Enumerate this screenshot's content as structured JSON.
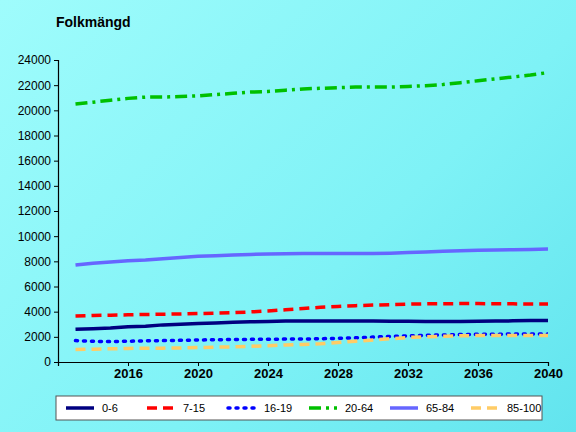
{
  "chart_data": {
    "type": "line",
    "title": "Folkmängd",
    "x": [
      2013,
      2014,
      2015,
      2016,
      2017,
      2018,
      2019,
      2020,
      2021,
      2022,
      2023,
      2024,
      2025,
      2026,
      2027,
      2028,
      2029,
      2030,
      2031,
      2032,
      2033,
      2034,
      2035,
      2036,
      2037,
      2038,
      2039,
      2040
    ],
    "xlim": [
      2012,
      2040
    ],
    "xticks": [
      2016,
      2020,
      2024,
      2028,
      2032,
      2036,
      2040
    ],
    "ylim": [
      0,
      24000
    ],
    "yticks": [
      0,
      2000,
      4000,
      6000,
      8000,
      10000,
      12000,
      14000,
      16000,
      18000,
      20000,
      22000,
      24000
    ],
    "grid": false,
    "legend": "bottom",
    "series": [
      {
        "name": "0-6",
        "color": "#000080",
        "line_style": "solid",
        "values": [
          2600,
          2650,
          2700,
          2800,
          2850,
          2950,
          3000,
          3050,
          3100,
          3150,
          3200,
          3220,
          3250,
          3250,
          3250,
          3250,
          3250,
          3250,
          3240,
          3230,
          3220,
          3220,
          3220,
          3230,
          3250,
          3270,
          3290,
          3300
        ]
      },
      {
        "name": "7-15",
        "color": "#ff0000",
        "line_style": "dashed",
        "values": [
          3650,
          3700,
          3720,
          3750,
          3780,
          3800,
          3820,
          3850,
          3880,
          3920,
          3980,
          4050,
          4150,
          4250,
          4350,
          4420,
          4480,
          4520,
          4560,
          4600,
          4620,
          4630,
          4640,
          4640,
          4630,
          4620,
          4610,
          4600
        ]
      },
      {
        "name": "16-19",
        "color": "#0000ff",
        "line_style": "dotted",
        "values": [
          1700,
          1650,
          1620,
          1650,
          1680,
          1700,
          1720,
          1750,
          1770,
          1790,
          1800,
          1810,
          1820,
          1830,
          1850,
          1880,
          1920,
          1980,
          2030,
          2080,
          2120,
          2150,
          2180,
          2200,
          2210,
          2220,
          2220,
          2220
        ]
      },
      {
        "name": "20-64",
        "color": "#00c000",
        "line_style": "dashdot",
        "values": [
          20500,
          20650,
          20800,
          20950,
          21050,
          21050,
          21100,
          21150,
          21250,
          21350,
          21450,
          21500,
          21600,
          21700,
          21750,
          21800,
          21850,
          21850,
          21850,
          21900,
          21950,
          22050,
          22200,
          22350,
          22500,
          22650,
          22800,
          23000
        ]
      },
      {
        "name": "65-84",
        "color": "#6666ff",
        "line_style": "solid",
        "values": [
          7700,
          7850,
          7950,
          8050,
          8100,
          8200,
          8300,
          8400,
          8450,
          8500,
          8550,
          8580,
          8600,
          8620,
          8620,
          8620,
          8620,
          8630,
          8650,
          8700,
          8750,
          8800,
          8850,
          8880,
          8900,
          8920,
          8950,
          8980
        ]
      },
      {
        "name": "85-100",
        "color": "#ffcc66",
        "line_style": "dashed",
        "values": [
          1000,
          1020,
          1050,
          1080,
          1100,
          1100,
          1120,
          1150,
          1180,
          1200,
          1250,
          1300,
          1350,
          1400,
          1450,
          1550,
          1650,
          1750,
          1850,
          1950,
          2000,
          2050,
          2080,
          2100,
          2100,
          2100,
          2100,
          2100
        ]
      }
    ]
  }
}
